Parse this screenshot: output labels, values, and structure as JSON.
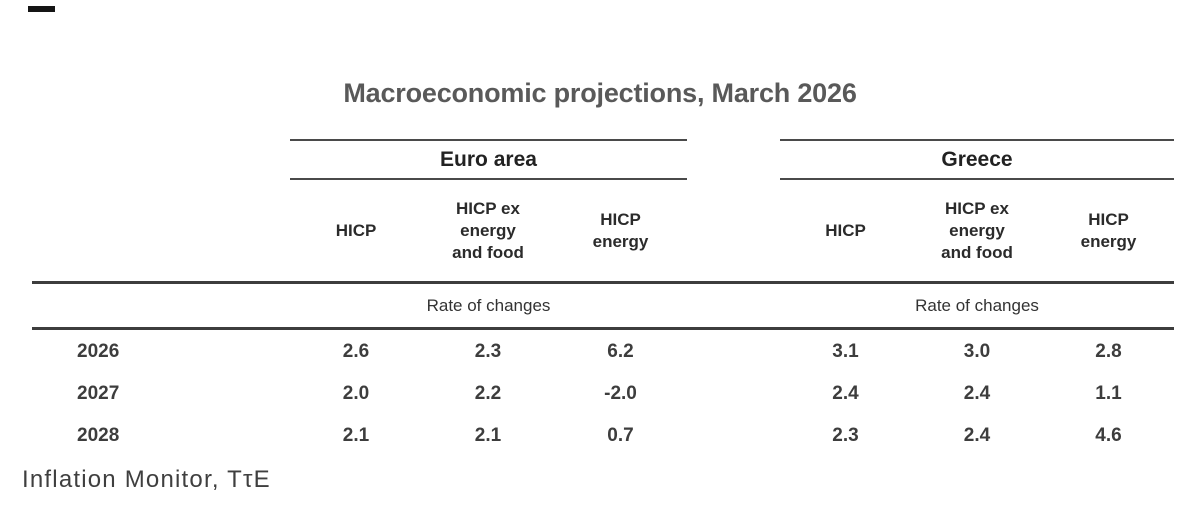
{
  "title": "Macroeconomic projections, March 2026",
  "table": {
    "groups": [
      {
        "label": "Euro area",
        "note": "Rate of changes"
      },
      {
        "label": "Greece",
        "note": "Rate of changes"
      }
    ],
    "subheaders": {
      "euro": [
        "HICP",
        "HICP ex\nenergy\nand food",
        "HICP\nenergy"
      ],
      "greece": [
        "HICP",
        "HICP ex\nenergy\nand food",
        "HICP\nenergy"
      ]
    },
    "rows": [
      {
        "year": "2026",
        "euro": [
          "2.6",
          "2.3",
          "6.2"
        ],
        "greece": [
          "3.1",
          "3.0",
          "2.8"
        ]
      },
      {
        "year": "2027",
        "euro": [
          "2.0",
          "2.2",
          "-2.0"
        ],
        "greece": [
          "2.4",
          "2.4",
          "1.1"
        ]
      },
      {
        "year": "2028",
        "euro": [
          "2.1",
          "2.1",
          "0.7"
        ],
        "greece": [
          "2.3",
          "2.4",
          "4.6"
        ]
      }
    ]
  },
  "footer": {
    "source": "Inflation Monitor, TτE"
  },
  "colors": {
    "title": "#595959",
    "text": "#3d3d3d",
    "rule": "#3d3d3d",
    "background": "#ffffff"
  },
  "chart_data": {
    "type": "table",
    "title": "Macroeconomic projections, March 2026",
    "column_groups": [
      "Euro area",
      "Greece"
    ],
    "columns": [
      "Year",
      "Euro area HICP",
      "Euro area HICP ex energy and food",
      "Euro area HICP energy",
      "Greece HICP",
      "Greece HICP ex energy and food",
      "Greece HICP energy"
    ],
    "unit": "Rate of changes",
    "rows": [
      [
        2026,
        2.6,
        2.3,
        6.2,
        3.1,
        3.0,
        2.8
      ],
      [
        2027,
        2.0,
        2.2,
        -2.0,
        2.4,
        2.4,
        1.1
      ],
      [
        2028,
        2.1,
        2.1,
        0.7,
        2.3,
        2.4,
        4.6
      ]
    ],
    "source": "Inflation Monitor, TτE"
  }
}
